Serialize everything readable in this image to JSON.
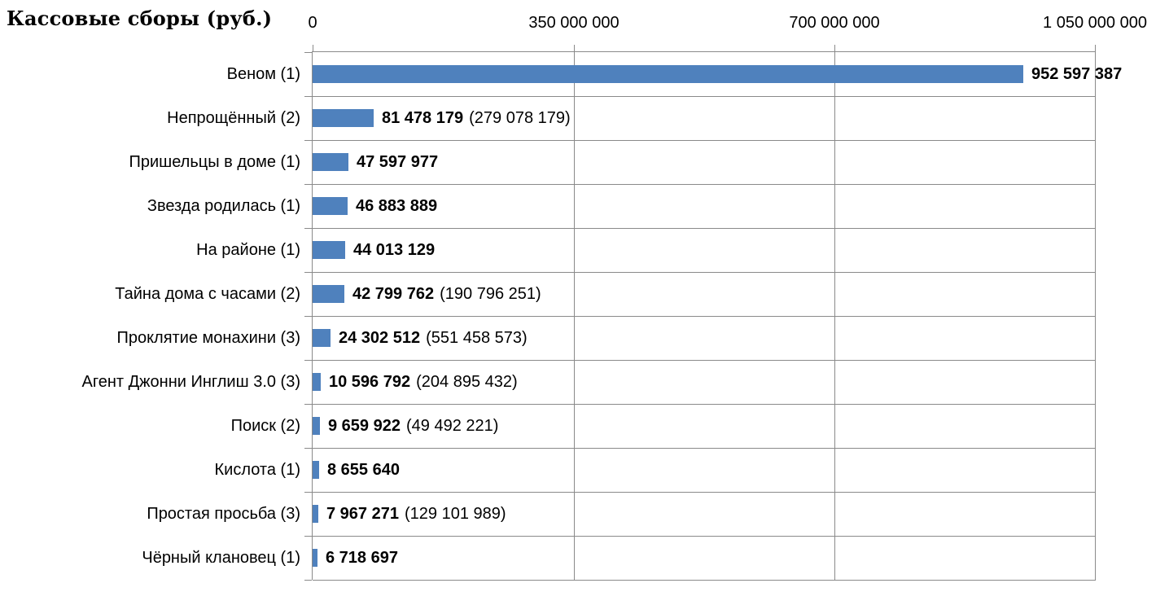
{
  "colors": {
    "bar": "#4F81BD",
    "gridline": "#8A8A8A",
    "text": "#000000",
    "background": "#FFFFFF"
  },
  "chart_data": {
    "type": "bar",
    "orientation": "horizontal",
    "title": "Кассовые сборы (руб.)",
    "xlabel": "",
    "ylabel": "",
    "xlim": [
      0,
      1050000000
    ],
    "grid": true,
    "legend": false,
    "x_ticks": [
      0,
      350000000,
      700000000,
      1050000000
    ],
    "x_tick_labels": [
      "0",
      "350 000 000",
      "700 000 000",
      "1 050 000 000"
    ],
    "categories": [
      "Веном (1)",
      "Непрощённый (2)",
      "Пришельцы в доме (1)",
      "Звезда родилась (1)",
      "На районе (1)",
      "Тайна дома с часами (2)",
      "Проклятие монахини (3)",
      "Агент Джонни Инглиш 3.0 (3)",
      "Поиск (2)",
      "Кислота (1)",
      "Простая просьба (3)",
      "Чёрный клановец (1)"
    ],
    "values": [
      952597387,
      81478179,
      47597977,
      46883889,
      44013129,
      42799762,
      24302512,
      10596792,
      9659922,
      8655640,
      7967271,
      6718697
    ],
    "data_labels": [
      {
        "primary": "952 597 387",
        "secondary": null
      },
      {
        "primary": "81 478 179",
        "secondary": "(279 078 179)"
      },
      {
        "primary": "47 597 977",
        "secondary": null
      },
      {
        "primary": "46 883 889",
        "secondary": null
      },
      {
        "primary": "44 013 129",
        "secondary": null
      },
      {
        "primary": "42 799 762",
        "secondary": "(190 796 251)"
      },
      {
        "primary": "24 302 512",
        "secondary": "(551 458 573)"
      },
      {
        "primary": "10 596 792",
        "secondary": "(204 895 432)"
      },
      {
        "primary": "9 659 922",
        "secondary": "(49 492 221)"
      },
      {
        "primary": "8 655 640",
        "secondary": null
      },
      {
        "primary": "7 967 271",
        "secondary": "(129 101 989)"
      },
      {
        "primary": "6 718 697",
        "secondary": null
      }
    ],
    "secondary_values": [
      null,
      279078179,
      null,
      null,
      null,
      190796251,
      551458573,
      204895432,
      49492221,
      null,
      129101989,
      null
    ]
  }
}
